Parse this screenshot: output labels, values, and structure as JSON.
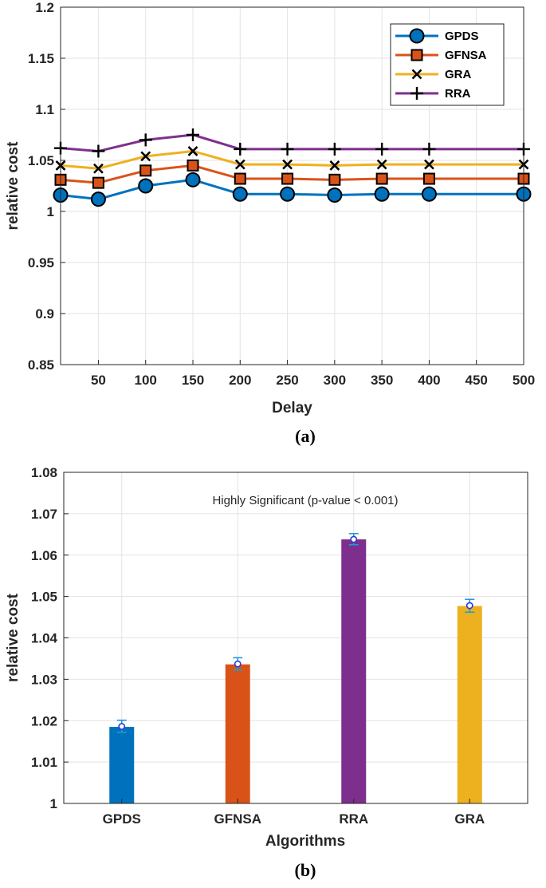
{
  "chart_data": [
    {
      "type": "line",
      "caption": "(a)",
      "xlabel": "Delay",
      "ylabel": "relative cost",
      "xlim": [
        10,
        500
      ],
      "ylim": [
        0.85,
        1.2
      ],
      "grid": true,
      "legend_position": "top-right",
      "x": [
        10,
        50,
        100,
        150,
        200,
        250,
        300,
        350,
        400,
        500
      ],
      "x_ticks": [
        "50",
        "100",
        "150",
        "200",
        "250",
        "300",
        "350",
        "400",
        "450",
        "500"
      ],
      "x_tick_values": [
        50,
        100,
        150,
        200,
        250,
        300,
        350,
        400,
        450,
        500
      ],
      "y_ticks": [
        "0.85",
        "0.9",
        "0.95",
        "1",
        "1.05",
        "1.1",
        "1.15",
        "1.2"
      ],
      "y_tick_values": [
        0.85,
        0.9,
        0.95,
        1.0,
        1.05,
        1.1,
        1.15,
        1.2
      ],
      "series": [
        {
          "name": "GPDS",
          "color": "#0072BD",
          "marker": "circle",
          "values": [
            1.016,
            1.012,
            1.025,
            1.031,
            1.017,
            1.017,
            1.016,
            1.017,
            1.017,
            1.017
          ]
        },
        {
          "name": "GFNSA",
          "color": "#D95319",
          "marker": "square",
          "values": [
            1.031,
            1.028,
            1.04,
            1.045,
            1.032,
            1.032,
            1.031,
            1.032,
            1.032,
            1.032
          ]
        },
        {
          "name": "GRA",
          "color": "#EDB120",
          "marker": "x",
          "values": [
            1.045,
            1.042,
            1.054,
            1.059,
            1.046,
            1.046,
            1.045,
            1.046,
            1.046,
            1.046
          ]
        },
        {
          "name": "RRA",
          "color": "#7E2F8E",
          "marker": "plus",
          "values": [
            1.062,
            1.059,
            1.07,
            1.075,
            1.061,
            1.061,
            1.061,
            1.061,
            1.061,
            1.061
          ]
        }
      ]
    },
    {
      "type": "bar",
      "caption": "(b)",
      "xlabel": "Algorithms",
      "ylabel": "relative cost",
      "annotation": "Highly Significant (p-value < 0.001)",
      "ylim": [
        1.0,
        1.08
      ],
      "grid": true,
      "categories": [
        "GPDS",
        "GFNSA",
        "RRA",
        "GRA"
      ],
      "values": [
        1.0185,
        1.0336,
        1.0638,
        1.0477
      ],
      "means": [
        1.0186,
        1.0337,
        1.0638,
        1.0478
      ],
      "error_low": [
        1.0172,
        1.0322,
        1.0625,
        1.0462
      ],
      "error_high": [
        1.0201,
        1.0352,
        1.0652,
        1.0493
      ],
      "colors": [
        "#0072BD",
        "#D95319",
        "#7E2F8E",
        "#EDB120"
      ],
      "y_ticks": [
        "1",
        "1.01",
        "1.02",
        "1.03",
        "1.04",
        "1.05",
        "1.06",
        "1.07",
        "1.08"
      ],
      "y_tick_values": [
        1.0,
        1.01,
        1.02,
        1.03,
        1.04,
        1.05,
        1.06,
        1.07,
        1.08
      ]
    }
  ]
}
